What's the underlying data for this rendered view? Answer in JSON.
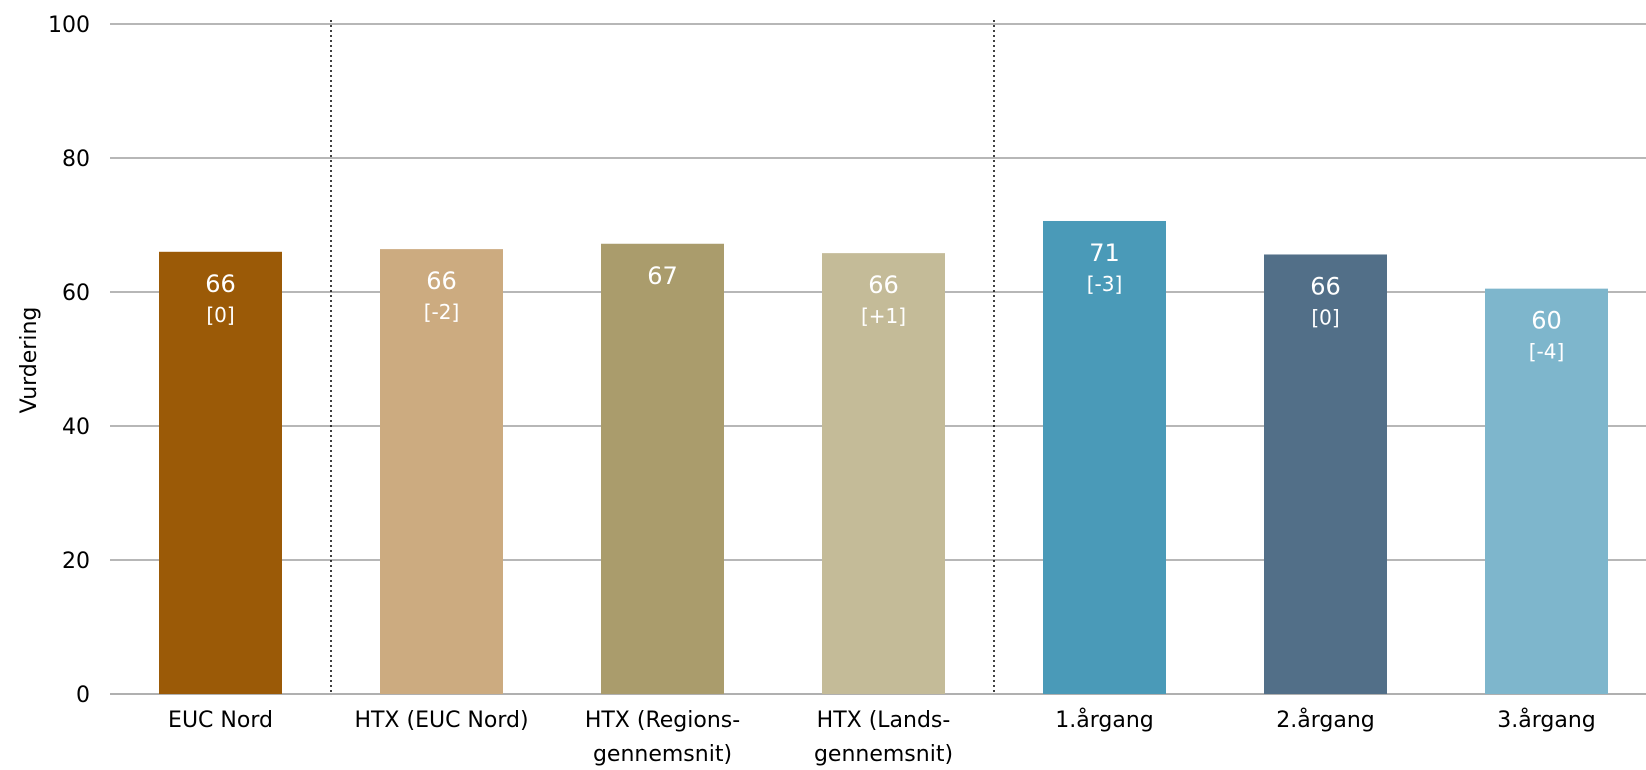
{
  "chart_data": {
    "type": "bar",
    "title": "",
    "xlabel": "",
    "ylabel": "Vurdering",
    "ylim": [
      0,
      100
    ],
    "yticks": [
      "0",
      "20",
      "40",
      "60",
      "80",
      "100"
    ],
    "grid": true,
    "legend": "none",
    "categories": [
      [
        "EUC Nord"
      ],
      [
        "HTX (EUC Nord)"
      ],
      [
        "HTX (Regions-",
        "gennemsnit)"
      ],
      [
        "HTX (Lands-",
        "gennemsnit)"
      ],
      [
        "1.årgang"
      ],
      [
        "2.årgang"
      ],
      [
        "3.årgang"
      ]
    ],
    "values": [
      66,
      66.4,
      67.2,
      65.8,
      70.6,
      65.6,
      60.5
    ],
    "value_labels": [
      "66",
      "66",
      "67",
      "66",
      "71",
      "66",
      "60"
    ],
    "delta_labels": [
      "[0]",
      "[-2]",
      "",
      "[+1]",
      "[-3]",
      "[0]",
      "[-4]"
    ],
    "colors": [
      "#9b5a07",
      "#ccab80",
      "#aa9c6c",
      "#c4bb98",
      "#4a9ab8",
      "#526f88",
      "#7eb6cc"
    ],
    "group_dividers_after": [
      0,
      3
    ]
  }
}
